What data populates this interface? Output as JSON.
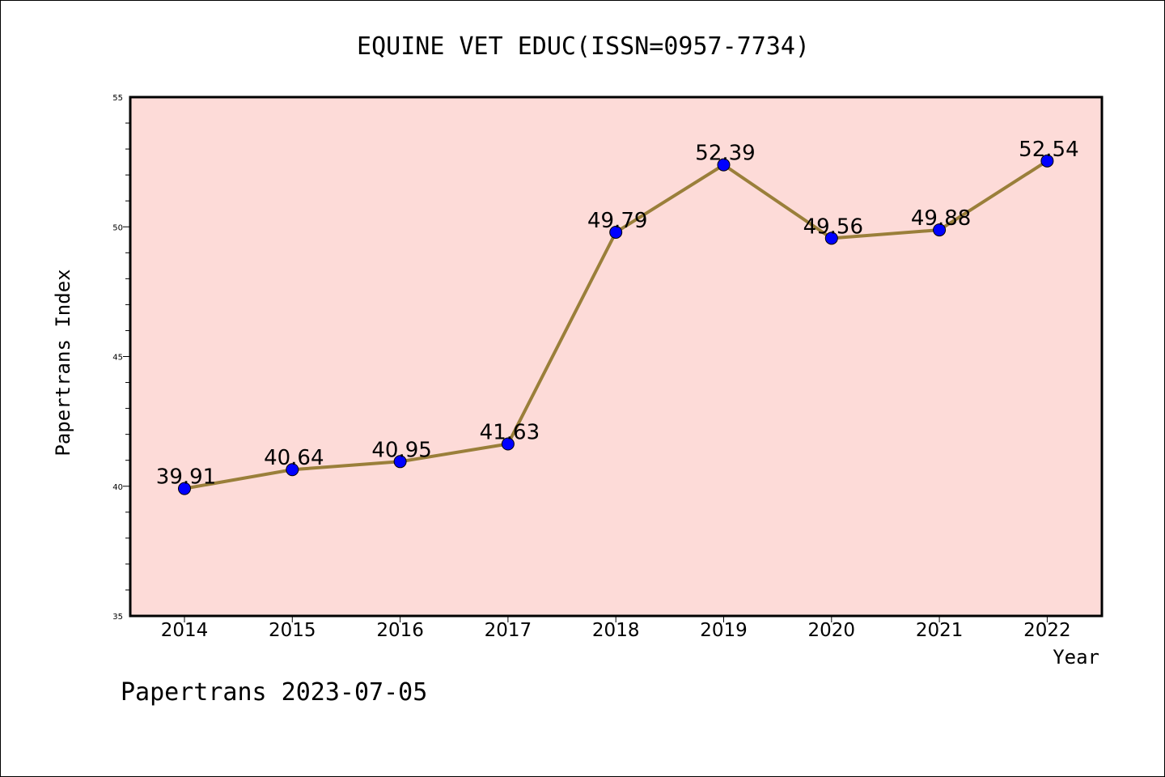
{
  "chart_data": {
    "type": "line",
    "title": "EQUINE VET EDUC(ISSN=0957-7734)",
    "xlabel": "Year",
    "ylabel": "Papertrans Index",
    "categories": [
      "2014",
      "2015",
      "2016",
      "2017",
      "2018",
      "2019",
      "2020",
      "2021",
      "2022"
    ],
    "series": [
      {
        "values": [
          39.91,
          40.64,
          40.95,
          41.63,
          49.79,
          52.39,
          49.56,
          49.88,
          52.54
        ],
        "labels": [
          "39.91",
          "40.64",
          "40.95",
          "41.63",
          "49.79",
          "52.39",
          "49.56",
          "49.88",
          "52.54"
        ]
      }
    ],
    "ylim": [
      35,
      55
    ],
    "yticks": [
      35,
      40,
      45,
      50,
      55
    ],
    "ytick_labels": [
      "35",
      "40",
      "45",
      "50",
      "55"
    ],
    "grid": false,
    "legend": "none"
  },
  "footer": "Papertrans 2023-07-05",
  "colors": {
    "plot_background": "#fddbd8",
    "line": "#9a7f3a",
    "marker": "#0000ff"
  }
}
